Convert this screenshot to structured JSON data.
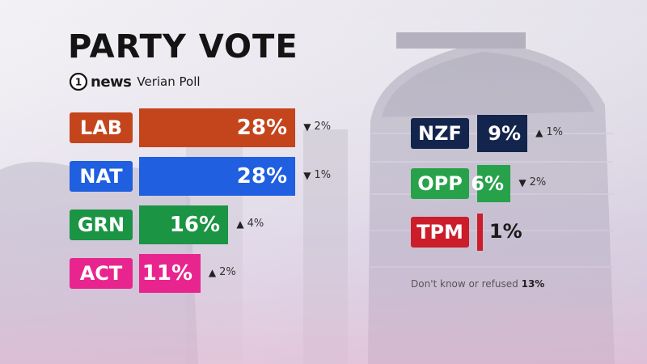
{
  "title": "PARTY VOTE",
  "brand": {
    "logo_digit": "1",
    "name": "news",
    "poll": "Verian Poll"
  },
  "colors": {
    "LAB": "#c4451c",
    "NAT": "#1f5fe0",
    "GRN": "#1b9444",
    "ACT": "#e8258f",
    "NZF": "#14254d",
    "OPP": "#27a24a",
    "TPM": "#cc1d2a"
  },
  "chart_data": {
    "type": "bar",
    "title": "PARTY VOTE",
    "unit": "%",
    "categories": [
      "LAB",
      "NAT",
      "GRN",
      "ACT",
      "NZF",
      "OPP",
      "TPM"
    ],
    "values": [
      28,
      28,
      16,
      11,
      9,
      6,
      1
    ],
    "value_labels": [
      "28%",
      "28%",
      "16%",
      "11%",
      "9%",
      "6%",
      "1%"
    ],
    "changes": [
      {
        "direction": "down",
        "text": "2%"
      },
      {
        "direction": "down",
        "text": "1%"
      },
      {
        "direction": "up",
        "text": "4%"
      },
      {
        "direction": "up",
        "text": "2%"
      },
      {
        "direction": "up",
        "text": "1%"
      },
      {
        "direction": "down",
        "text": "2%"
      },
      null
    ],
    "footnote_label": "Don't know or refused",
    "footnote_value": "13%"
  }
}
